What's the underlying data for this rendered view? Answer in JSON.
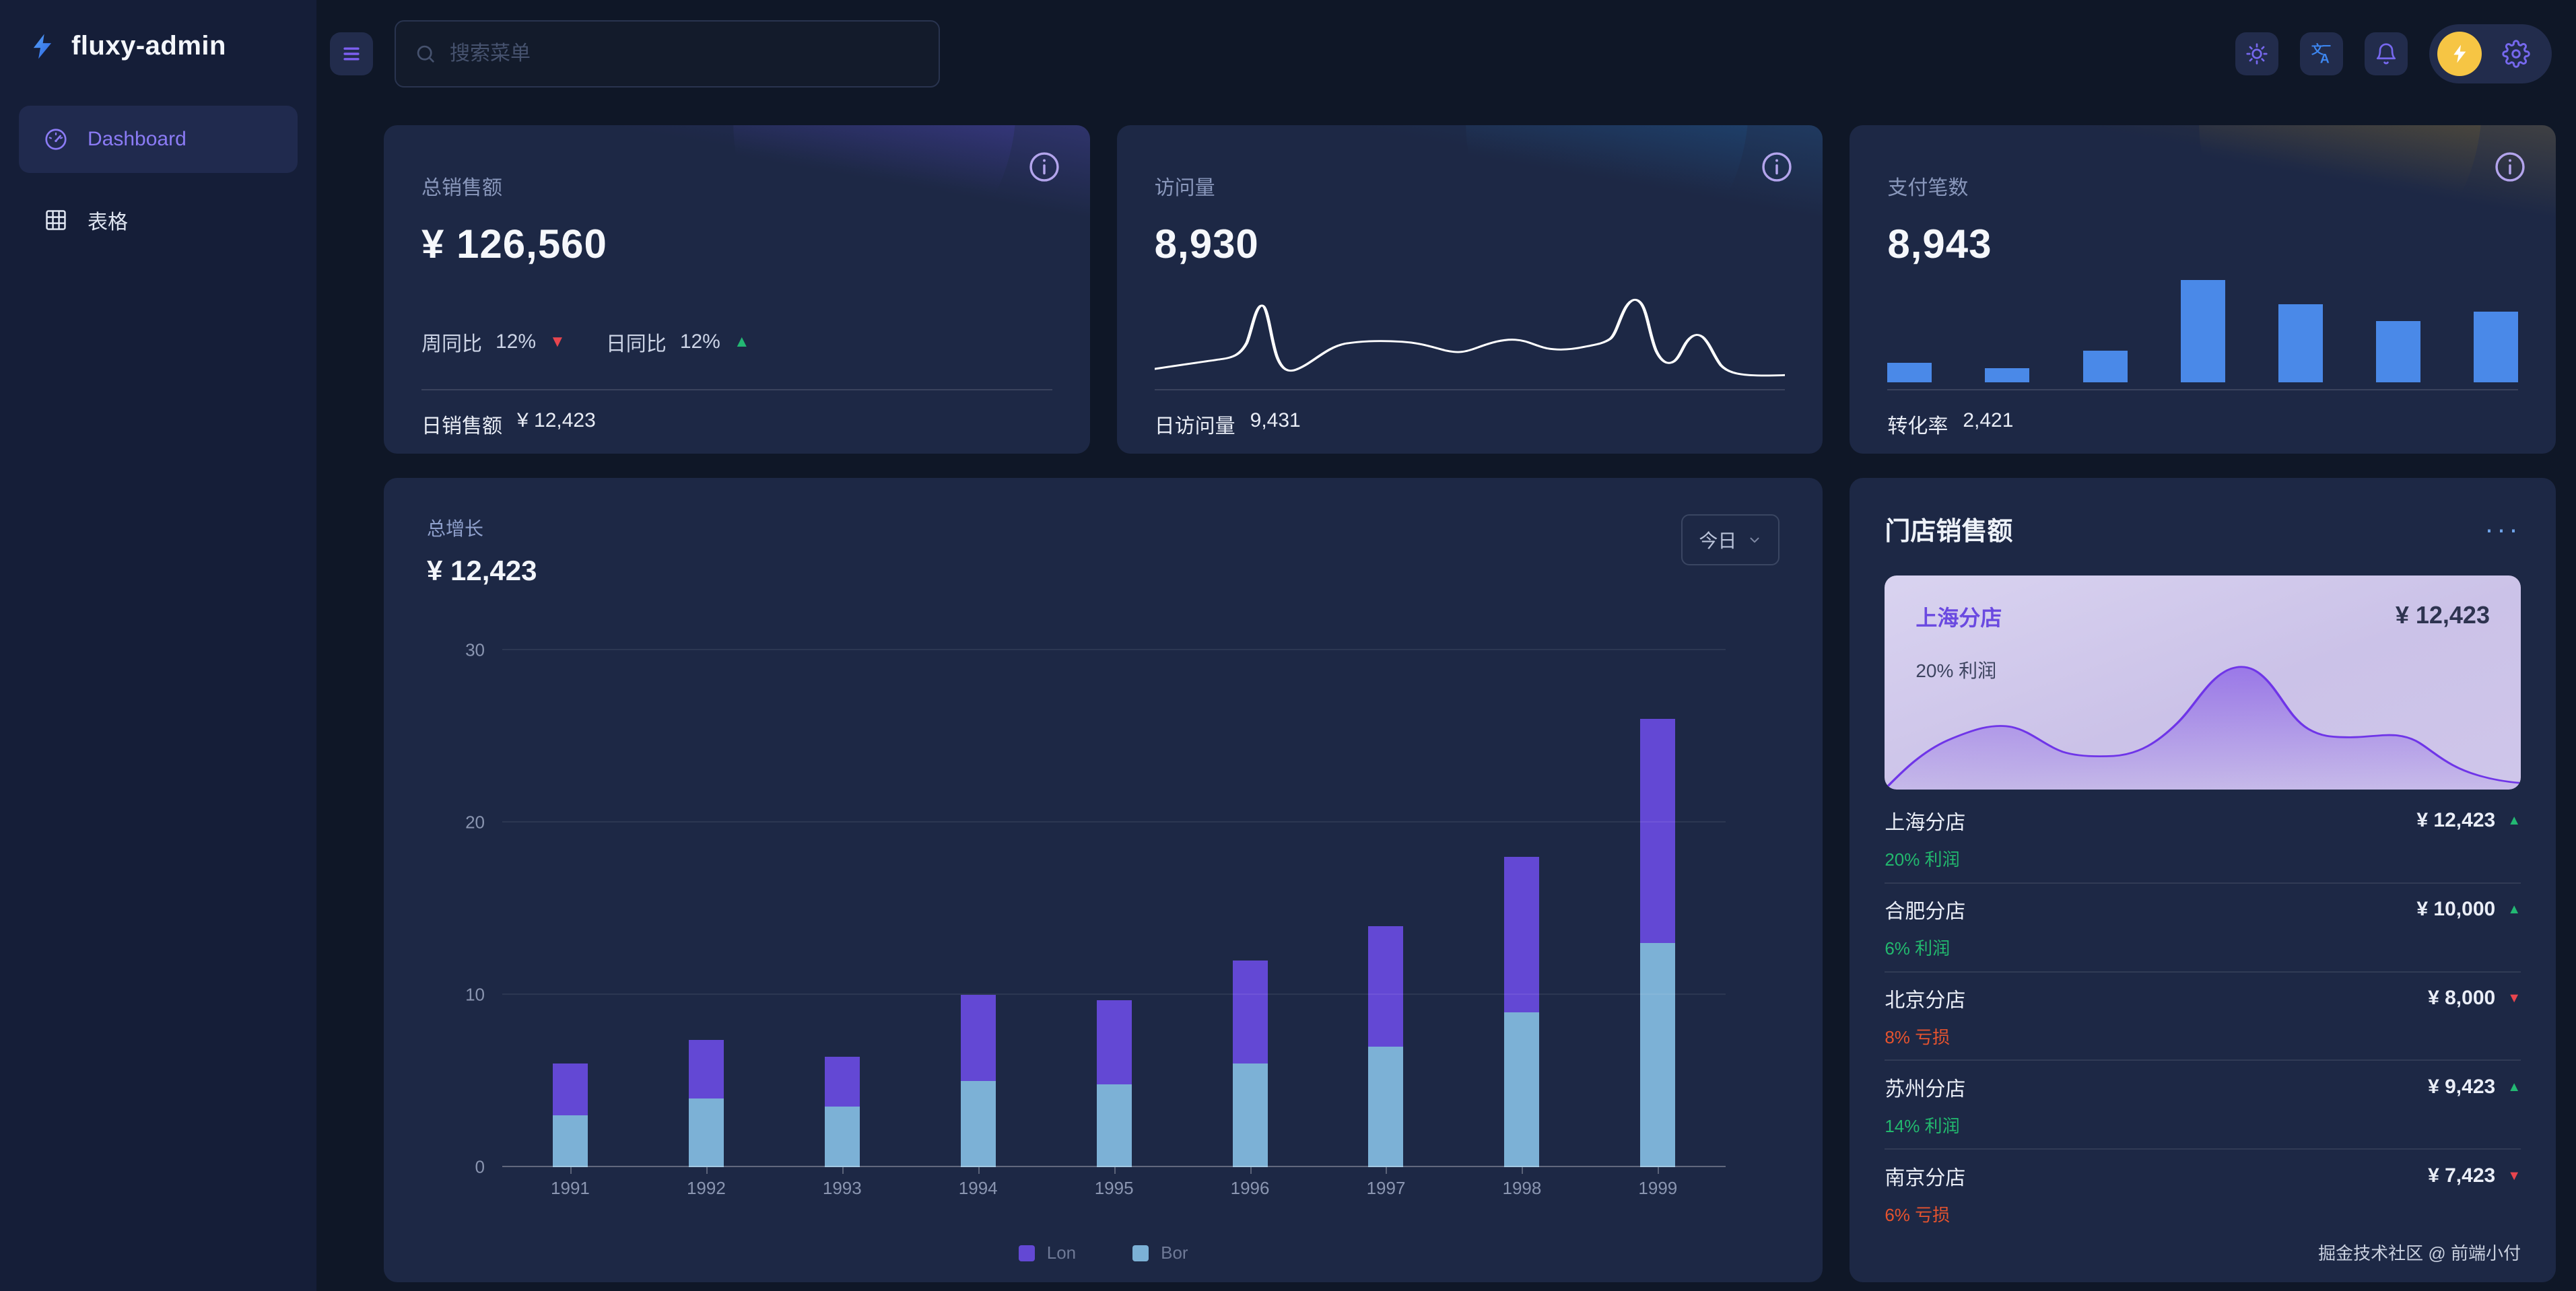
{
  "app": {
    "logo": "fluxy-admin"
  },
  "sidebar": {
    "items": [
      {
        "label": "Dashboard",
        "icon": "gauge-icon",
        "active": true
      },
      {
        "label": "表格",
        "icon": "table-icon",
        "active": false
      }
    ]
  },
  "topbar": {
    "search_placeholder": "搜索菜单"
  },
  "stat_cards": [
    {
      "title": "总销售额",
      "value": "¥ 126,560",
      "week": {
        "label": "周同比",
        "value": "12%",
        "trend": "down"
      },
      "day": {
        "label": "日同比",
        "value": "12%",
        "trend": "up"
      },
      "footer": {
        "label": "日销售额",
        "value": "¥ 12,423"
      },
      "theme": "purple"
    },
    {
      "title": "访问量",
      "value": "8,930",
      "footer": {
        "label": "日访问量",
        "value": "9,431"
      },
      "theme": "blue"
    },
    {
      "title": "支付笔数",
      "value": "8,943",
      "footer": {
        "label": "转化率",
        "value": "2,421"
      },
      "theme": "gold"
    }
  ],
  "growth": {
    "title": "总增长",
    "amount": "¥ 12,423",
    "range_label": "今日"
  },
  "store_panel": {
    "title": "门店销售额",
    "menu_label": "···",
    "featured": {
      "name": "上海分店",
      "value": "¥ 12,423",
      "note": "20% 利润"
    },
    "stores": [
      {
        "name": "上海分店",
        "value": "¥ 12,423",
        "trend": "up",
        "note": "20% 利润"
      },
      {
        "name": "合肥分店",
        "value": "¥ 10,000",
        "trend": "up",
        "note": "6% 利润"
      },
      {
        "name": "北京分店",
        "value": "¥ 8,000",
        "trend": "down",
        "note": "8% 亏损"
      },
      {
        "name": "苏州分店",
        "value": "¥ 9,423",
        "trend": "up",
        "note": "14% 利润"
      },
      {
        "name": "南京分店",
        "value": "¥ 7,423",
        "trend": "down",
        "note": "6% 亏损"
      }
    ]
  },
  "footer": {
    "credit": "掘金技术社区 @ 前端小付"
  },
  "colors": {
    "accent_purple": "#6348d4",
    "bar_blue": "#7cb1d6",
    "mini_bar_blue": "#4a89e8",
    "up_green": "#22b96e",
    "down_red": "#e6532e",
    "card_bg": "#1d2845",
    "page_bg": "#0f1727",
    "sidebar_bg": "#151e38",
    "featured_bg": "#cdc4e9"
  },
  "chart_data": [
    {
      "id": "growth-stacked-bar",
      "type": "bar",
      "stacked": true,
      "title": "总增长",
      "categories": [
        "1991",
        "1992",
        "1993",
        "1994",
        "1995",
        "1996",
        "1997",
        "1998",
        "1999"
      ],
      "series": [
        {
          "name": "Bor",
          "color": "#7cb1d6",
          "values": [
            3,
            4,
            3.5,
            5,
            4.8,
            6,
            7,
            9,
            13
          ]
        },
        {
          "name": "Lon",
          "color": "#6348d4",
          "values": [
            3,
            3.4,
            2.9,
            5,
            4.9,
            6,
            7,
            9,
            13
          ]
        }
      ],
      "legend": [
        {
          "name": "Lon",
          "color": "#6348d4"
        },
        {
          "name": "Bor",
          "color": "#7cb1d6"
        }
      ],
      "ylim": [
        0,
        30
      ],
      "yticks": [
        0,
        10,
        20,
        30
      ],
      "grid": true,
      "legend_position": "bottom"
    },
    {
      "id": "visits-sparkline",
      "type": "line",
      "color": "#ffffff",
      "values": [
        18,
        20,
        21,
        22,
        26,
        40,
        16,
        14,
        20,
        24,
        26,
        26,
        26,
        25,
        22,
        24,
        27,
        26,
        24,
        23,
        24,
        26,
        28,
        27,
        42,
        22,
        15,
        30,
        18,
        13,
        12,
        12
      ]
    },
    {
      "id": "payments-mini-bar",
      "type": "bar",
      "color": "#4a89e8",
      "values_pct": [
        19,
        14,
        31,
        100,
        76,
        60,
        69
      ]
    },
    {
      "id": "featured-store-area",
      "type": "area",
      "color": "#7a3df0",
      "values": [
        2,
        6,
        10,
        12,
        11,
        8,
        7,
        7,
        8,
        12,
        20,
        26,
        24,
        16,
        13,
        13,
        13,
        14,
        13,
        9,
        6,
        5,
        4
      ]
    }
  ]
}
